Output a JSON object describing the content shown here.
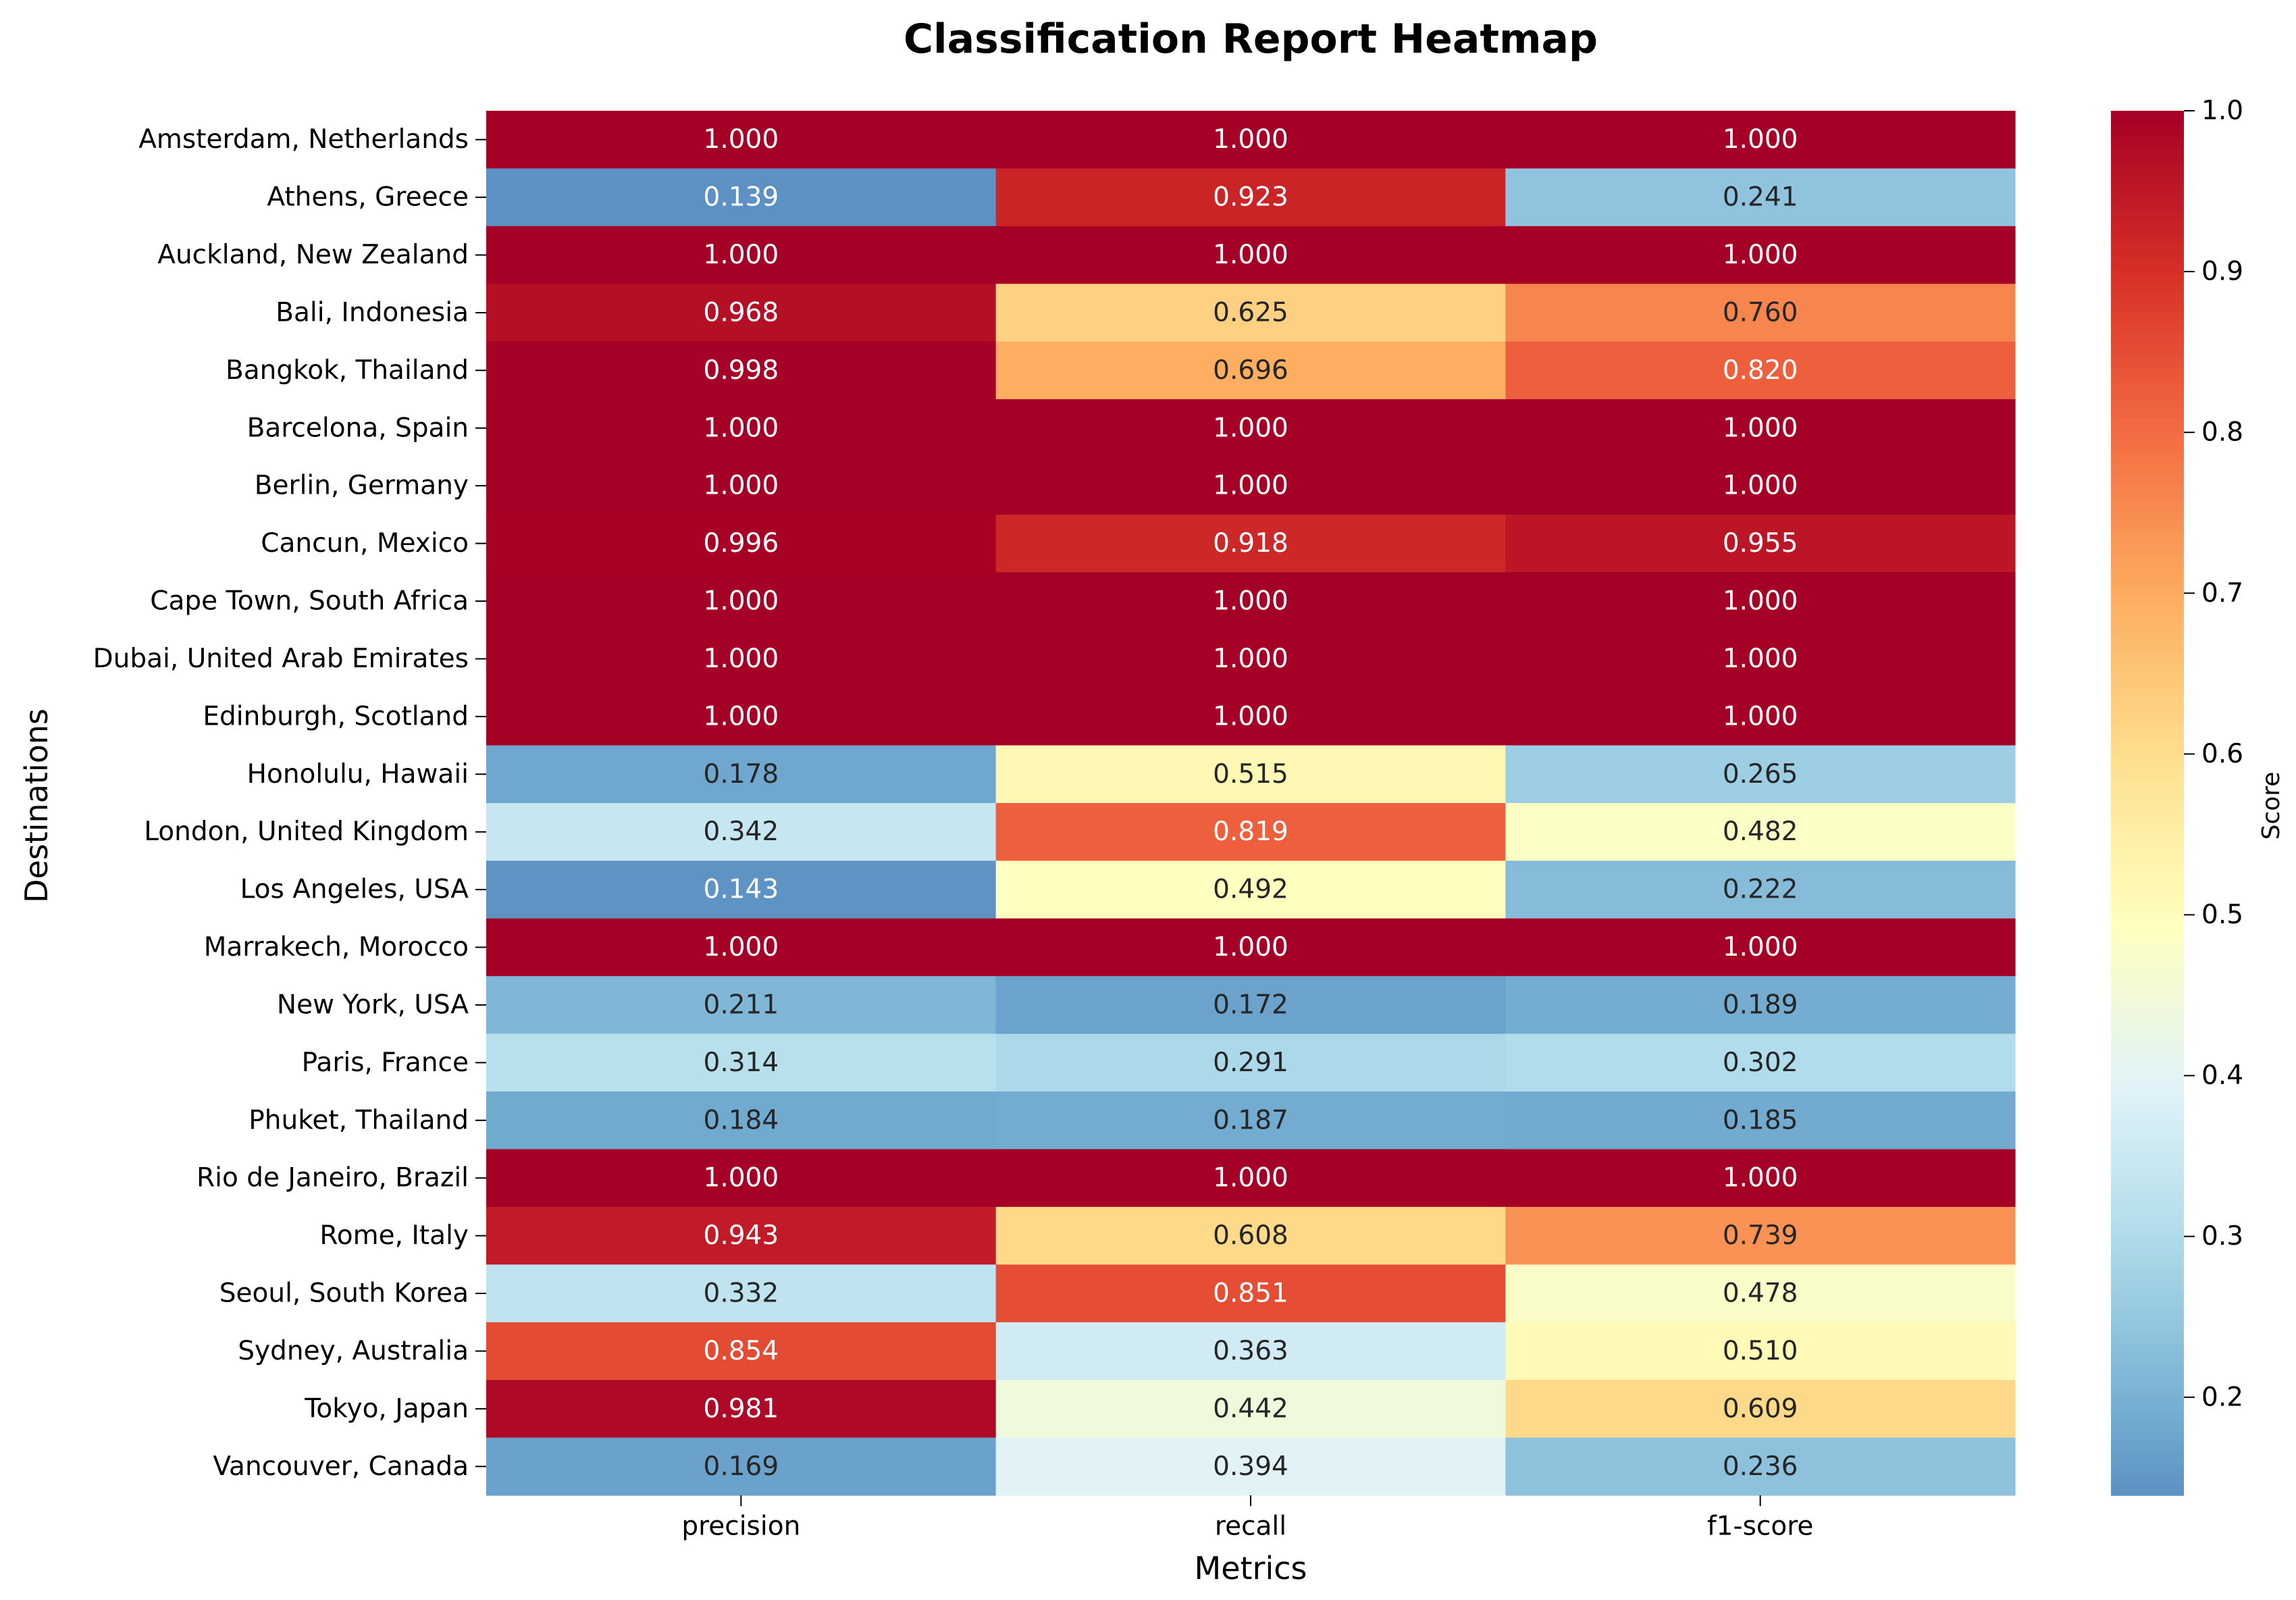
{
  "chart_data": {
    "type": "heatmap",
    "title": "Classification Report Heatmap",
    "xlabel": "Metrics",
    "ylabel": "Destinations",
    "colorbar_label": "Score",
    "colormap": "RdYlBu_r",
    "value_range": [
      0.139,
      1.0
    ],
    "colorbar_ticks": [
      "0.2",
      "0.3",
      "0.4",
      "0.5",
      "0.6",
      "0.7",
      "0.8",
      "0.9",
      "1.0"
    ],
    "columns": [
      "precision",
      "recall",
      "f1-score"
    ],
    "rows": [
      "Amsterdam, Netherlands",
      "Athens, Greece",
      "Auckland, New Zealand",
      "Bali, Indonesia",
      "Bangkok, Thailand",
      "Barcelona, Spain",
      "Berlin, Germany",
      "Cancun, Mexico",
      "Cape Town, South Africa",
      "Dubai, United Arab Emirates",
      "Edinburgh, Scotland",
      "Honolulu, Hawaii",
      "London, United Kingdom",
      "Los Angeles, USA",
      "Marrakech, Morocco",
      "New York, USA",
      "Paris, France",
      "Phuket, Thailand",
      "Rio de Janeiro, Brazil",
      "Rome, Italy",
      "Seoul, South Korea",
      "Sydney, Australia",
      "Tokyo, Japan",
      "Vancouver, Canada"
    ],
    "values": [
      [
        1.0,
        1.0,
        1.0
      ],
      [
        0.139,
        0.923,
        0.241
      ],
      [
        1.0,
        1.0,
        1.0
      ],
      [
        0.968,
        0.625,
        0.76
      ],
      [
        0.998,
        0.696,
        0.82
      ],
      [
        1.0,
        1.0,
        1.0
      ],
      [
        1.0,
        1.0,
        1.0
      ],
      [
        0.996,
        0.918,
        0.955
      ],
      [
        1.0,
        1.0,
        1.0
      ],
      [
        1.0,
        1.0,
        1.0
      ],
      [
        1.0,
        1.0,
        1.0
      ],
      [
        0.178,
        0.515,
        0.265
      ],
      [
        0.342,
        0.819,
        0.482
      ],
      [
        0.143,
        0.492,
        0.222
      ],
      [
        1.0,
        1.0,
        1.0
      ],
      [
        0.211,
        0.172,
        0.189
      ],
      [
        0.314,
        0.291,
        0.302
      ],
      [
        0.184,
        0.187,
        0.185
      ],
      [
        1.0,
        1.0,
        1.0
      ],
      [
        0.943,
        0.608,
        0.739
      ],
      [
        0.332,
        0.851,
        0.478
      ],
      [
        0.854,
        0.363,
        0.51
      ],
      [
        0.981,
        0.442,
        0.609
      ],
      [
        0.169,
        0.394,
        0.236
      ]
    ]
  }
}
